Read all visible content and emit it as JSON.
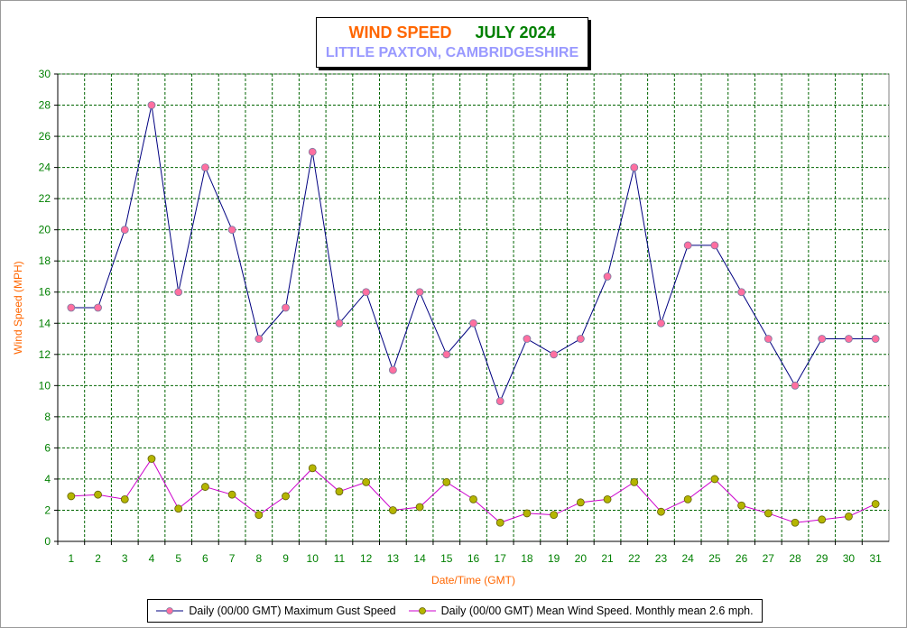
{
  "title": {
    "line1_a": "WIND SPEED",
    "line1_b": "JULY 2024",
    "line2": "LITTLE PAXTON, CAMBRIDGESHIRE"
  },
  "chart_data": {
    "type": "line",
    "title": "WIND SPEED JULY 2024",
    "subtitle": "LITTLE PAXTON, CAMBRIDGESHIRE",
    "xlabel": "Date/Time (GMT)",
    "ylabel": "Wind Speed (MPH)",
    "x": [
      1,
      2,
      3,
      4,
      5,
      6,
      7,
      8,
      9,
      10,
      11,
      12,
      13,
      14,
      15,
      16,
      17,
      18,
      19,
      20,
      21,
      22,
      23,
      24,
      25,
      26,
      27,
      28,
      29,
      30,
      31
    ],
    "ylim": [
      0,
      30
    ],
    "yticks": [
      0,
      2,
      4,
      6,
      8,
      10,
      12,
      14,
      16,
      18,
      20,
      22,
      24,
      26,
      28,
      30
    ],
    "grid": true,
    "legend_position": "bottom",
    "series": [
      {
        "name": "Daily (00/00 GMT) Maximum Gust Speed",
        "line_color": "#000080",
        "marker_color": "#ff6fa0",
        "values": [
          15,
          15,
          20,
          28,
          16,
          24,
          20,
          13,
          15,
          25,
          14,
          16,
          11,
          16,
          12,
          14,
          9,
          13,
          12,
          13,
          17,
          24,
          14,
          19,
          19,
          16,
          13,
          10,
          13,
          13,
          13
        ]
      },
      {
        "name": "Daily (00/00 GMT) Mean Wind Speed. Monthly mean 2.6 mph.",
        "line_color": "#cc00cc",
        "marker_color": "#b5b500",
        "values": [
          2.9,
          3.0,
          2.7,
          5.3,
          2.1,
          3.5,
          3.0,
          1.7,
          2.9,
          4.7,
          3.2,
          3.8,
          2.0,
          2.2,
          3.8,
          2.7,
          1.2,
          1.8,
          1.7,
          2.5,
          2.7,
          3.8,
          1.9,
          2.7,
          4.0,
          2.3,
          1.8,
          1.2,
          1.4,
          1.6,
          2.4
        ]
      }
    ]
  }
}
